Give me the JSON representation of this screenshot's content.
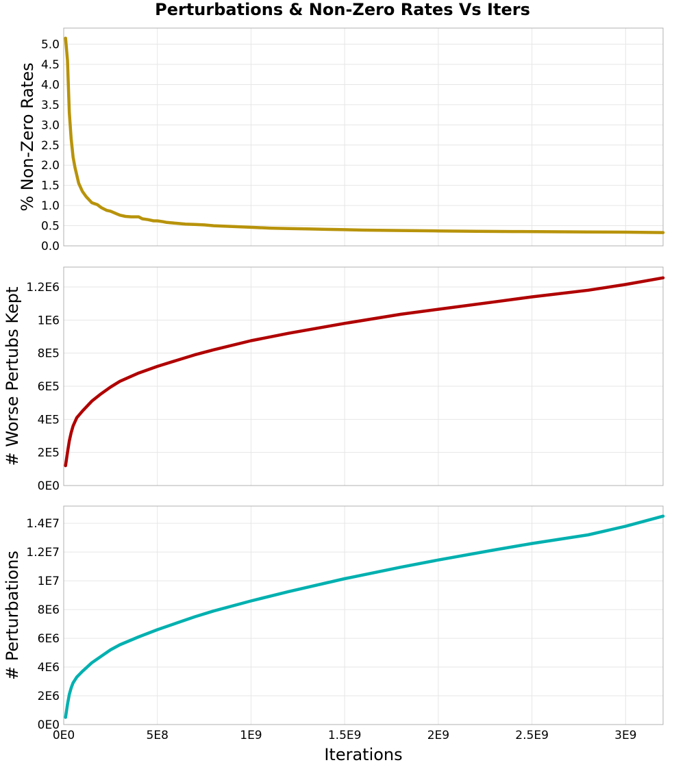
{
  "figure_title": "Perturbations & Non-Zero Rates Vs Iters",
  "chart_data": [
    {
      "type": "line",
      "ylabel": "% Non-Zero Rates",
      "xlabel": "",
      "xlim": [
        0,
        3200000000.0
      ],
      "ylim": [
        0,
        5.4
      ],
      "grid": true,
      "show_x_tick_labels": false,
      "x_ticks": [
        0,
        500000000.0,
        1000000000.0,
        1500000000.0,
        2000000000.0,
        2500000000.0,
        3000000000.0
      ],
      "x_tick_labels": [
        "0E0",
        "5E8",
        "1E9",
        "1.5E9",
        "2E9",
        "2.5E9",
        "3E9"
      ],
      "y_ticks": [
        0,
        0.5,
        1.0,
        1.5,
        2.0,
        2.5,
        3.0,
        3.5,
        4.0,
        4.5,
        5.0
      ],
      "y_tick_labels": [
        "0.0",
        "0.5",
        "1.0",
        "1.5",
        "2.0",
        "2.5",
        "3.0",
        "3.5",
        "4.0",
        "4.5",
        "5.0"
      ],
      "series": [
        {
          "color": "#b8930b",
          "x": [
            10000000.0,
            20000000.0,
            30000000.0,
            40000000.0,
            50000000.0,
            60000000.0,
            80000000.0,
            100000000.0,
            120000000.0,
            150000000.0,
            180000000.0,
            200000000.0,
            230000000.0,
            250000000.0,
            280000000.0,
            300000000.0,
            330000000.0,
            360000000.0,
            400000000.0,
            420000000.0,
            450000000.0,
            480000000.0,
            500000000.0,
            530000000.0,
            550000000.0,
            600000000.0,
            650000000.0,
            700000000.0,
            750000000.0,
            800000000.0,
            900000000.0,
            1000000000.0,
            1100000000.0,
            1200000000.0,
            1300000000.0,
            1400000000.0,
            1500000000.0,
            1600000000.0,
            1800000000.0,
            2000000000.0,
            2200000000.0,
            2400000000.0,
            2600000000.0,
            2800000000.0,
            3000000000.0,
            3200000000.0
          ],
          "y": [
            5.15,
            4.6,
            3.3,
            2.65,
            2.2,
            1.95,
            1.55,
            1.35,
            1.22,
            1.07,
            1.02,
            0.95,
            0.88,
            0.86,
            0.8,
            0.76,
            0.73,
            0.72,
            0.72,
            0.67,
            0.65,
            0.62,
            0.62,
            0.6,
            0.58,
            0.56,
            0.54,
            0.53,
            0.52,
            0.5,
            0.48,
            0.46,
            0.44,
            0.43,
            0.42,
            0.41,
            0.4,
            0.39,
            0.38,
            0.37,
            0.36,
            0.355,
            0.35,
            0.345,
            0.34,
            0.33
          ]
        }
      ]
    },
    {
      "type": "line",
      "ylabel": "# Worse Pertubs Kept",
      "xlabel": "",
      "xlim": [
        0,
        3200000000.0
      ],
      "ylim": [
        0,
        1320000.0
      ],
      "grid": true,
      "show_x_tick_labels": false,
      "x_ticks": [
        0,
        500000000.0,
        1000000000.0,
        1500000000.0,
        2000000000.0,
        2500000000.0,
        3000000000.0
      ],
      "x_tick_labels": [
        "0E0",
        "5E8",
        "1E9",
        "1.5E9",
        "2E9",
        "2.5E9",
        "3E9"
      ],
      "y_ticks": [
        0,
        200000,
        400000,
        600000,
        800000,
        1000000,
        1200000
      ],
      "y_tick_labels": [
        "0E0",
        "2E5",
        "4E5",
        "6E5",
        "8E5",
        "1E6",
        "1.2E6"
      ],
      "series": [
        {
          "color": "#b00000",
          "x": [
            10000000.0,
            20000000.0,
            30000000.0,
            40000000.0,
            50000000.0,
            70000000.0,
            100000000.0,
            150000000.0,
            200000000.0,
            250000000.0,
            300000000.0,
            400000000.0,
            500000000.0,
            600000000.0,
            700000000.0,
            800000000.0,
            1000000000.0,
            1200000000.0,
            1500000000.0,
            1800000000.0,
            2000000000.0,
            2300000000.0,
            2500000000.0,
            2800000000.0,
            3000000000.0,
            3200000000.0
          ],
          "y": [
            120000,
            200000,
            270000,
            320000,
            360000,
            410000,
            450000,
            510000,
            555000,
            595000,
            630000,
            680000,
            720000,
            755000,
            790000,
            820000,
            875000,
            920000,
            980000,
            1035000,
            1065000,
            1110000,
            1140000,
            1180000,
            1215000,
            1255000
          ]
        }
      ]
    },
    {
      "type": "line",
      "ylabel": "# Perturbations",
      "xlabel": "Iterations",
      "xlim": [
        0,
        3200000000.0
      ],
      "ylim": [
        0,
        15200000.0
      ],
      "grid": true,
      "show_x_tick_labels": true,
      "x_ticks": [
        0,
        500000000.0,
        1000000000.0,
        1500000000.0,
        2000000000.0,
        2500000000.0,
        3000000000.0
      ],
      "x_tick_labels": [
        "0E0",
        "5E8",
        "1E9",
        "1.5E9",
        "2E9",
        "2.5E9",
        "3E9"
      ],
      "y_ticks": [
        0,
        2000000,
        4000000,
        6000000,
        8000000,
        10000000,
        12000000,
        14000000
      ],
      "y_tick_labels": [
        "0E0",
        "2E6",
        "4E6",
        "6E6",
        "8E6",
        "1E7",
        "1.2E7",
        "1.4E7"
      ],
      "series": [
        {
          "color": "#00b0b0",
          "x": [
            10000000.0,
            20000000.0,
            30000000.0,
            40000000.0,
            50000000.0,
            70000000.0,
            100000000.0,
            150000000.0,
            200000000.0,
            250000000.0,
            300000000.0,
            400000000.0,
            500000000.0,
            600000000.0,
            700000000.0,
            800000000.0,
            1000000000.0,
            1200000000.0,
            1500000000.0,
            1800000000.0,
            2000000000.0,
            2300000000.0,
            2500000000.0,
            2800000000.0,
            3000000000.0,
            3200000000.0
          ],
          "y": [
            500000,
            1400000,
            2100000,
            2550000,
            2900000,
            3300000,
            3700000,
            4300000,
            4750000,
            5200000,
            5550000,
            6100000,
            6600000,
            7050000,
            7500000,
            7900000,
            8600000,
            9250000,
            10150000,
            10950000,
            11450000,
            12150000,
            12600000,
            13200000,
            13800000,
            14500000
          ]
        }
      ]
    }
  ]
}
